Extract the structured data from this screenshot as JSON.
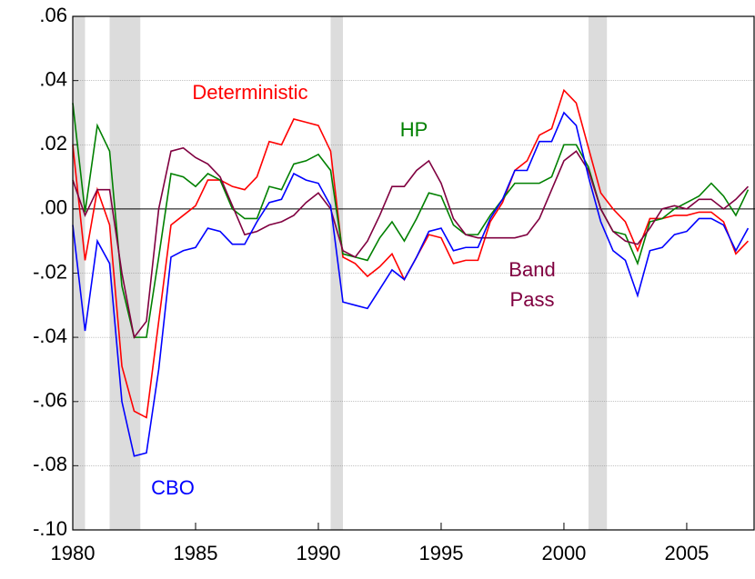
{
  "chart_data": {
    "type": "line",
    "x": [
      1980,
      1980.5,
      1981,
      1981.5,
      1982,
      1982.5,
      1983,
      1983.5,
      1984,
      1984.5,
      1985,
      1985.5,
      1986,
      1986.5,
      1987,
      1987.5,
      1988,
      1988.5,
      1989,
      1989.5,
      1990,
      1990.5,
      1991,
      1991.5,
      1992,
      1992.5,
      1993,
      1993.5,
      1994,
      1994.5,
      1995,
      1995.5,
      1996,
      1996.5,
      1997,
      1997.5,
      1998,
      1998.5,
      1999,
      1999.5,
      2000,
      2000.5,
      2001,
      2001.5,
      2002,
      2002.5,
      2003,
      2003.5,
      2004,
      2004.5,
      2005,
      2005.5,
      2006,
      2006.5,
      2007,
      2007.5
    ],
    "series": [
      {
        "name": "Deterministic",
        "color": "#ff0000",
        "values": [
          0.02,
          -0.016,
          0.006,
          -0.005,
          -0.049,
          -0.063,
          -0.065,
          -0.035,
          -0.005,
          -0.002,
          0.001,
          0.009,
          0.009,
          0.007,
          0.006,
          0.01,
          0.021,
          0.02,
          0.028,
          0.027,
          0.026,
          0.018,
          -0.015,
          -0.017,
          -0.021,
          -0.018,
          -0.014,
          -0.022,
          -0.015,
          -0.008,
          -0.009,
          -0.017,
          -0.016,
          -0.016,
          -0.004,
          0.002,
          0.012,
          0.015,
          0.023,
          0.025,
          0.037,
          0.033,
          0.019,
          0.005,
          0.0,
          -0.004,
          -0.013,
          -0.003,
          -0.003,
          -0.002,
          -0.002,
          -0.001,
          -0.001,
          -0.004,
          -0.014,
          -0.01
        ]
      },
      {
        "name": "HP",
        "color": "#008000",
        "values": [
          0.033,
          -0.001,
          0.026,
          0.018,
          -0.024,
          -0.04,
          -0.04,
          -0.015,
          0.011,
          0.01,
          0.007,
          0.011,
          0.009,
          0.0,
          -0.003,
          -0.003,
          0.007,
          0.006,
          0.014,
          0.015,
          0.017,
          0.012,
          -0.014,
          -0.015,
          -0.016,
          -0.009,
          -0.004,
          -0.01,
          -0.003,
          0.005,
          0.004,
          -0.005,
          -0.008,
          -0.008,
          -0.002,
          0.003,
          0.008,
          0.008,
          0.008,
          0.01,
          0.02,
          0.02,
          0.013,
          0.0,
          -0.007,
          -0.008,
          -0.017,
          -0.004,
          -0.003,
          0.0,
          0.002,
          0.004,
          0.008,
          0.004,
          -0.002,
          0.006
        ]
      },
      {
        "name": "Band Pass",
        "color": "#800040",
        "values": [
          0.009,
          -0.002,
          0.006,
          0.006,
          -0.02,
          -0.04,
          -0.035,
          0.0,
          0.018,
          0.019,
          0.016,
          0.014,
          0.01,
          0.001,
          -0.008,
          -0.007,
          -0.005,
          -0.004,
          -0.002,
          0.002,
          0.005,
          0.0,
          -0.013,
          -0.015,
          -0.01,
          -0.002,
          0.007,
          0.007,
          0.012,
          0.015,
          0.008,
          -0.003,
          -0.008,
          -0.009,
          -0.009,
          -0.009,
          -0.009,
          -0.008,
          -0.003,
          0.006,
          0.015,
          0.018,
          0.012,
          0.0,
          -0.007,
          -0.01,
          -0.011,
          -0.006,
          0.0,
          0.001,
          0.0,
          0.003,
          0.003,
          0.0,
          0.003,
          0.007
        ]
      },
      {
        "name": "CBO",
        "color": "#0000ff",
        "values": [
          -0.005,
          -0.038,
          -0.01,
          -0.017,
          -0.06,
          -0.077,
          -0.076,
          -0.05,
          -0.015,
          -0.013,
          -0.012,
          -0.006,
          -0.007,
          -0.011,
          -0.011,
          -0.004,
          0.002,
          0.003,
          0.011,
          0.009,
          0.008,
          0.001,
          -0.029,
          -0.03,
          -0.031,
          -0.025,
          -0.019,
          -0.022,
          -0.015,
          -0.007,
          -0.006,
          -0.013,
          -0.012,
          -0.012,
          -0.003,
          0.003,
          0.012,
          0.012,
          0.021,
          0.021,
          0.03,
          0.026,
          0.01,
          -0.004,
          -0.013,
          -0.016,
          -0.027,
          -0.013,
          -0.012,
          -0.008,
          -0.007,
          -0.003,
          -0.003,
          -0.005,
          -0.013,
          -0.006
        ]
      }
    ],
    "shaded_periods": [
      [
        1980,
        1980.5
      ],
      [
        1981.5,
        1982.75
      ],
      [
        1990.5,
        1991
      ],
      [
        2001,
        2001.75
      ]
    ],
    "xlim": [
      1980,
      2007.78
    ],
    "ylim": [
      -0.1,
      0.06
    ],
    "xticks": [
      1980,
      1985,
      1990,
      1995,
      2000,
      2005
    ],
    "yticks": [
      {
        "value": -0.1,
        "label": "-.10"
      },
      {
        "value": -0.08,
        "label": "-.08"
      },
      {
        "value": -0.06,
        "label": "-.06"
      },
      {
        "value": -0.04,
        "label": "-.04"
      },
      {
        "value": -0.02,
        "label": "-.02"
      },
      {
        "value": 0,
        "label": ".00"
      },
      {
        "value": 0.02,
        "label": ".02"
      },
      {
        "value": 0.04,
        "label": ".04"
      },
      {
        "value": 0.06,
        "label": ".06"
      }
    ],
    "grid": true
  }
}
